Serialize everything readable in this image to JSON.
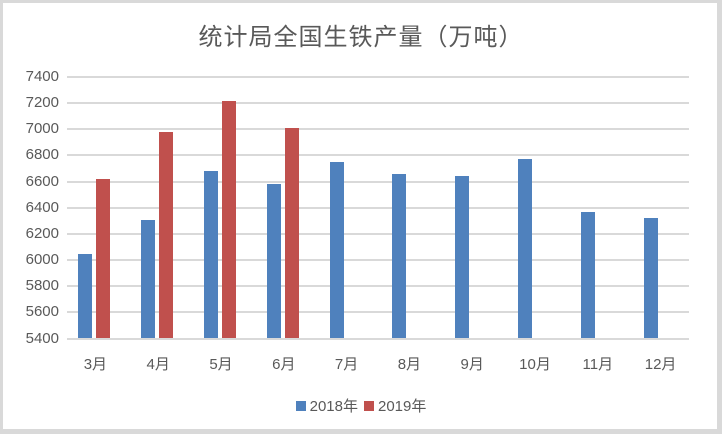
{
  "chart_data": {
    "type": "bar",
    "title": "统计局全国生铁产量（万吨）",
    "xlabel": "",
    "ylabel": "",
    "ylim": [
      5400,
      7400
    ],
    "yticks": [
      5400,
      5600,
      5800,
      6000,
      6200,
      6400,
      6600,
      6800,
      7000,
      7200,
      7400
    ],
    "grid": true,
    "legend_position": "bottom",
    "categories": [
      "3月",
      "4月",
      "5月",
      "6月",
      "7月",
      "8月",
      "9月",
      "10月",
      "11月",
      "12月"
    ],
    "series": [
      {
        "name": "2018年",
        "color": "#4f81bd",
        "values": [
          6050,
          6310,
          6680,
          6580,
          6750,
          6660,
          6640,
          6770,
          6370,
          6320
        ]
      },
      {
        "name": "2019年",
        "color": "#c0504d",
        "values": [
          6620,
          6980,
          7220,
          7010,
          null,
          null,
          null,
          null,
          null,
          null
        ]
      }
    ]
  }
}
